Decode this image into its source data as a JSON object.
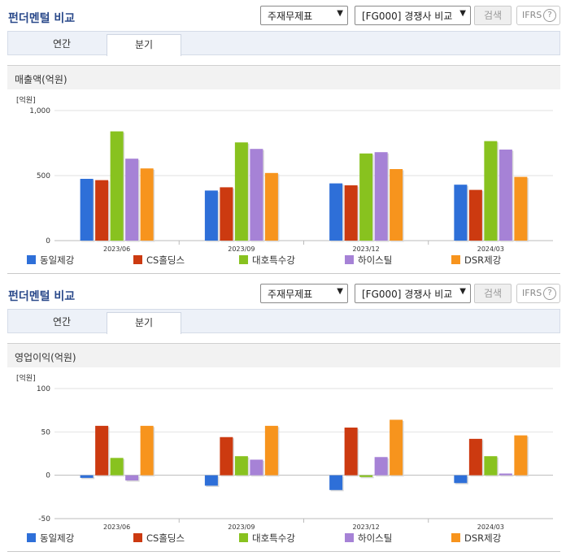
{
  "sections": [
    {
      "header": {
        "title": "펀더멘털 비교",
        "select_type": "주재무제표",
        "select_compare": "[FG000] 경쟁사 비교",
        "search_label": "검색",
        "ifrs_label": "IFRS",
        "help_label": "?"
      },
      "tabs": [
        "연간",
        "분기"
      ],
      "active_tab": "분기",
      "metric_title": "매출액(억원)"
    },
    {
      "header": {
        "title": "펀더멘털 비교",
        "select_type": "주재무제표",
        "select_compare": "[FG000] 경쟁사 비교",
        "search_label": "검색",
        "ifrs_label": "IFRS",
        "help_label": "?"
      },
      "tabs": [
        "연간",
        "분기"
      ],
      "active_tab": "분기",
      "metric_title": "영업이익(억원)"
    }
  ],
  "chart_data": [
    {
      "type": "bar",
      "title": "매출액(억원)",
      "unit_label": "[억원]",
      "categories": [
        "2023/06",
        "2023/09",
        "2023/12",
        "2024/03"
      ],
      "ylim": [
        0,
        1000
      ],
      "yticks": [
        0,
        500,
        1000
      ],
      "ytick_labels": [
        "0",
        "500",
        "1,000"
      ],
      "grid": true,
      "legend_position": "bottom",
      "series": [
        {
          "name": "동일제강",
          "color": "#2e6fd8",
          "values": [
            475,
            385,
            440,
            430
          ]
        },
        {
          "name": "CS홀딩스",
          "color": "#cc3a10",
          "values": [
            465,
            410,
            425,
            390
          ]
        },
        {
          "name": "대호특수강",
          "color": "#88c21f",
          "values": [
            840,
            755,
            670,
            765
          ]
        },
        {
          "name": "하이스틸",
          "color": "#a682d6",
          "values": [
            630,
            705,
            680,
            700
          ]
        },
        {
          "name": "DSR제강",
          "color": "#f7941d",
          "values": [
            555,
            520,
            550,
            490
          ]
        }
      ]
    },
    {
      "type": "bar",
      "title": "영업이익(억원)",
      "unit_label": "[억원]",
      "categories": [
        "2023/06",
        "2023/09",
        "2023/12",
        "2024/03"
      ],
      "ylim": [
        -50,
        100
      ],
      "yticks": [
        -50,
        0,
        50,
        100
      ],
      "ytick_labels": [
        "-50",
        "0",
        "50",
        "100"
      ],
      "grid": true,
      "legend_position": "bottom",
      "series": [
        {
          "name": "동일제강",
          "color": "#2e6fd8",
          "values": [
            -3,
            -12,
            -17,
            -9
          ]
        },
        {
          "name": "CS홀딩스",
          "color": "#cc3a10",
          "values": [
            57,
            44,
            55,
            42
          ]
        },
        {
          "name": "대호특수강",
          "color": "#88c21f",
          "values": [
            20,
            22,
            -2,
            22
          ]
        },
        {
          "name": "하이스틸",
          "color": "#a682d6",
          "values": [
            -6,
            18,
            21,
            2
          ]
        },
        {
          "name": "DSR제강",
          "color": "#f7941d",
          "values": [
            57,
            57,
            64,
            46
          ]
        }
      ]
    }
  ]
}
